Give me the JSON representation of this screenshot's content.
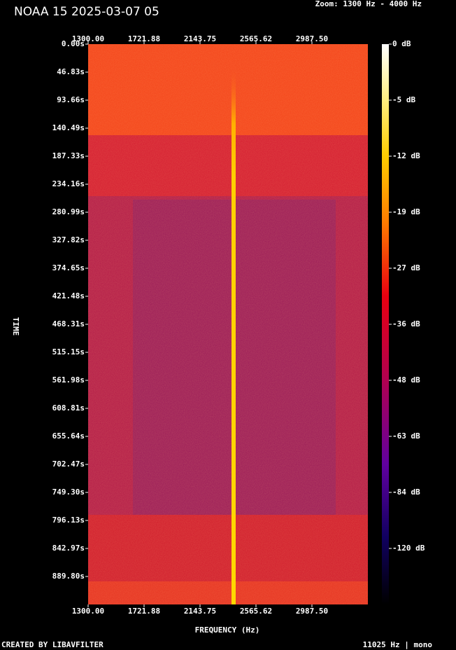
{
  "chart_data": {
    "type": "spectrogram",
    "title": "NOAA 15 2025-03-07 05",
    "subtitle": "Zoom: 1300 Hz - 4000 Hz",
    "x_label": "FREQUENCY (Hz)",
    "y_label": "TIME",
    "footer_left": "CREATED BY LIBAVFILTER",
    "footer_right": "11025 Hz | mono",
    "xlim": [
      1300,
      3409.375
    ],
    "xticks": [
      {
        "value": 1300,
        "label": "1300.00"
      },
      {
        "value": 1721.88,
        "label": "1721.88"
      },
      {
        "value": 2143.75,
        "label": "2143.75"
      },
      {
        "value": 2565.62,
        "label": "2565.62"
      },
      {
        "value": 2987.5,
        "label": "2987.50"
      }
    ],
    "ylim": [
      0,
      936.6
    ],
    "yticks": [
      {
        "value": 0,
        "label": "0.00s"
      },
      {
        "value": 46.83,
        "label": "46.83s"
      },
      {
        "value": 93.66,
        "label": "93.66s"
      },
      {
        "value": 140.49,
        "label": "140.49s"
      },
      {
        "value": 187.33,
        "label": "187.33s"
      },
      {
        "value": 234.16,
        "label": "234.16s"
      },
      {
        "value": 280.99,
        "label": "280.99s"
      },
      {
        "value": 327.82,
        "label": "327.82s"
      },
      {
        "value": 374.65,
        "label": "374.65s"
      },
      {
        "value": 421.48,
        "label": "421.48s"
      },
      {
        "value": 468.31,
        "label": "468.31s"
      },
      {
        "value": 515.15,
        "label": "515.15s"
      },
      {
        "value": 561.98,
        "label": "561.98s"
      },
      {
        "value": 608.81,
        "label": "608.81s"
      },
      {
        "value": 655.64,
        "label": "655.64s"
      },
      {
        "value": 702.47,
        "label": "702.47s"
      },
      {
        "value": 749.3,
        "label": "749.30s"
      },
      {
        "value": 796.13,
        "label": "796.13s"
      },
      {
        "value": 842.97,
        "label": "842.97s"
      },
      {
        "value": 889.8,
        "label": "889.80s"
      }
    ],
    "colorbar_ticks": [
      {
        "value": 0,
        "label": "0 dB"
      },
      {
        "value": -5,
        "label": "-5 dB"
      },
      {
        "value": -12,
        "label": "-12 dB"
      },
      {
        "value": -19,
        "label": "-19 dB"
      },
      {
        "value": -27,
        "label": "-27 dB"
      },
      {
        "value": -36,
        "label": "-36 dB"
      },
      {
        "value": -48,
        "label": "-48 dB"
      },
      {
        "value": -63,
        "label": "-63 dB"
      },
      {
        "value": -84,
        "label": "-84 dB"
      },
      {
        "value": -120,
        "label": "-120 dB"
      }
    ]
  }
}
